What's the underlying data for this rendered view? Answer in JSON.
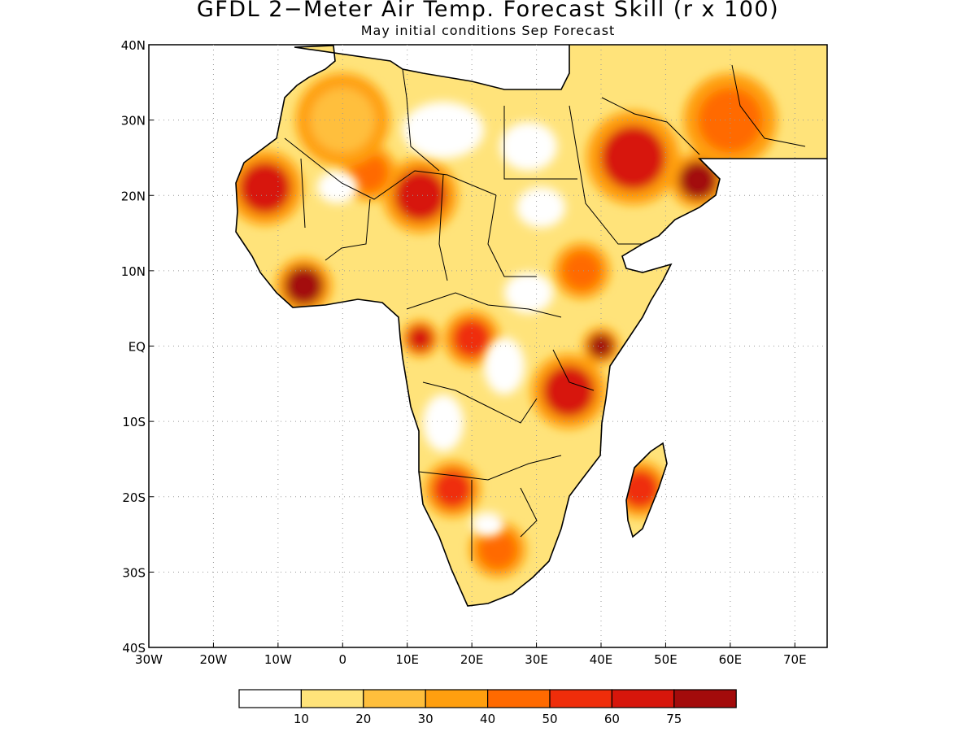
{
  "title": "GFDL 2−Meter Air Temp. Forecast Skill (r x 100)",
  "subtitle": "May initial conditions  Sep Forecast",
  "map": {
    "lon_range": [
      -30,
      75
    ],
    "lat_range": [
      -40,
      40
    ],
    "lon_tick_labels": [
      "30W",
      "20W",
      "10W",
      "0",
      "10E",
      "20E",
      "30E",
      "40E",
      "50E",
      "60E",
      "70E"
    ],
    "lat_tick_labels": [
      "40N",
      "30N",
      "20N",
      "10N",
      "EQ",
      "10S",
      "20S",
      "30S",
      "40S"
    ],
    "gridlines": "dotted",
    "region": "Africa and Arabian Peninsula"
  },
  "colorbar": {
    "labels": [
      "10",
      "20",
      "30",
      "40",
      "50",
      "60",
      "75"
    ],
    "colors": [
      "#ffffff",
      "#ffe37a",
      "#ffbf3c",
      "#ff9f0f",
      "#ff6a00",
      "#ef2d0a",
      "#d7160b",
      "#a30b0b"
    ]
  },
  "chart_data": {
    "type": "heatmap",
    "title": "GFDL 2−Meter Air Temp. Forecast Skill (r x 100)",
    "subtitle": "May initial conditions  Sep Forecast",
    "xlabel": "",
    "ylabel": "",
    "x_range": [
      -30,
      75
    ],
    "y_range": [
      -40,
      40
    ],
    "levels": [
      10,
      20,
      30,
      40,
      50,
      60,
      75
    ],
    "regions": [
      {
        "lon": -12,
        "lat": 21,
        "r": 4,
        "level": 60
      },
      {
        "lon": 12,
        "lat": 20,
        "r": 4,
        "level": 60
      },
      {
        "lon": 4,
        "lat": 23,
        "r": 3,
        "level": 40
      },
      {
        "lon": -6,
        "lat": 8,
        "r": 3,
        "level": 75
      },
      {
        "lon": 12,
        "lat": 1,
        "r": 2,
        "level": 60
      },
      {
        "lon": 20,
        "lat": 1,
        "r": 3,
        "level": 50
      },
      {
        "lon": 40,
        "lat": 0,
        "r": 2,
        "level": 75
      },
      {
        "lon": 35,
        "lat": -6,
        "r": 4,
        "level": 60
      },
      {
        "lon": 45,
        "lat": 25,
        "r": 5,
        "level": 60
      },
      {
        "lon": 55,
        "lat": 22,
        "r": 3,
        "level": 75
      },
      {
        "lon": 37,
        "lat": 10,
        "r": 3,
        "level": 40
      },
      {
        "lon": 46,
        "lat": -19,
        "r": 3,
        "level": 50
      },
      {
        "lon": 17,
        "lat": -19,
        "r": 3,
        "level": 50
      },
      {
        "lon": 24,
        "lat": -27,
        "r": 3,
        "level": 40
      },
      {
        "lon": 60,
        "lat": 30,
        "r": 5,
        "level": 40
      },
      {
        "lon": 0,
        "lat": 30,
        "r": 5,
        "level": 20
      }
    ]
  }
}
